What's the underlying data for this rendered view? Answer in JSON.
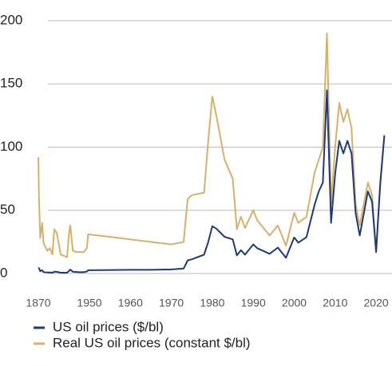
{
  "chart_data": {
    "type": "line",
    "x": [
      1870,
      1871,
      1873,
      1876,
      1878,
      1880,
      1884,
      1888,
      1892,
      1895,
      1899,
      1905,
      1910,
      1915,
      1918,
      1920,
      1924,
      1930,
      1935,
      1941,
      1946,
      1948,
      1955,
      1960,
      1965,
      1970,
      1973,
      1974,
      1975,
      1978,
      1979,
      1980,
      1981,
      1983,
      1985,
      1986,
      1987,
      1988,
      1990,
      1991,
      1994,
      1996,
      1998,
      2000,
      2001,
      2003,
      2005,
      2006,
      2007,
      2008,
      2009,
      2010,
      2011,
      2012,
      2013,
      2014,
      2015,
      2016,
      2018,
      2019,
      2020,
      2021,
      2022
    ],
    "series": [
      {
        "name": "US oil prices ($/bl)",
        "color": "#1f3a7a",
        "values": [
          3.9,
          4.3,
          1.8,
          2.6,
          1.2,
          0.95,
          0.85,
          0.9,
          0.6,
          1.4,
          1.3,
          0.6,
          0.6,
          0.6,
          2.0,
          3.1,
          1.4,
          1.2,
          1.0,
          1.1,
          1.6,
          2.6,
          2.8,
          2.9,
          2.9,
          3.2,
          3.9,
          10.4,
          11.2,
          14.9,
          25,
          37.4,
          35.5,
          29,
          27,
          14.4,
          18.4,
          14.9,
          23,
          20,
          15.6,
          20.5,
          12.5,
          28.5,
          24.4,
          28.8,
          54.5,
          65,
          72,
          145,
          40,
          79,
          105,
          95,
          105,
          95,
          48,
          30,
          65,
          57,
          17,
          70,
          109
        ]
      },
      {
        "name": "Real US oil prices (constant $/bl)",
        "color": "#d8b06a",
        "values": [
          92,
          60,
          28,
          40,
          25,
          22,
          18,
          20,
          15,
          35,
          32,
          15,
          14,
          13,
          32,
          38,
          18,
          17,
          17,
          17,
          20,
          31,
          29,
          27,
          25,
          23,
          25,
          59,
          62,
          64,
          105,
          140,
          125,
          90,
          75,
          35,
          45,
          36,
          50,
          42,
          30,
          38,
          22,
          48,
          40,
          45,
          80,
          90,
          100,
          190,
          55,
          100,
          135,
          120,
          130,
          115,
          55,
          38,
          72,
          62,
          18,
          72,
          110
        ]
      }
    ],
    "ylim": [
      0,
      200
    ],
    "yticks": [
      0,
      50,
      100,
      150,
      200
    ],
    "xlim": [
      1870,
      2022
    ],
    "xticks": [
      1870,
      1950,
      1960,
      1970,
      1980,
      1990,
      2000,
      2010,
      2020
    ],
    "grid": true
  }
}
